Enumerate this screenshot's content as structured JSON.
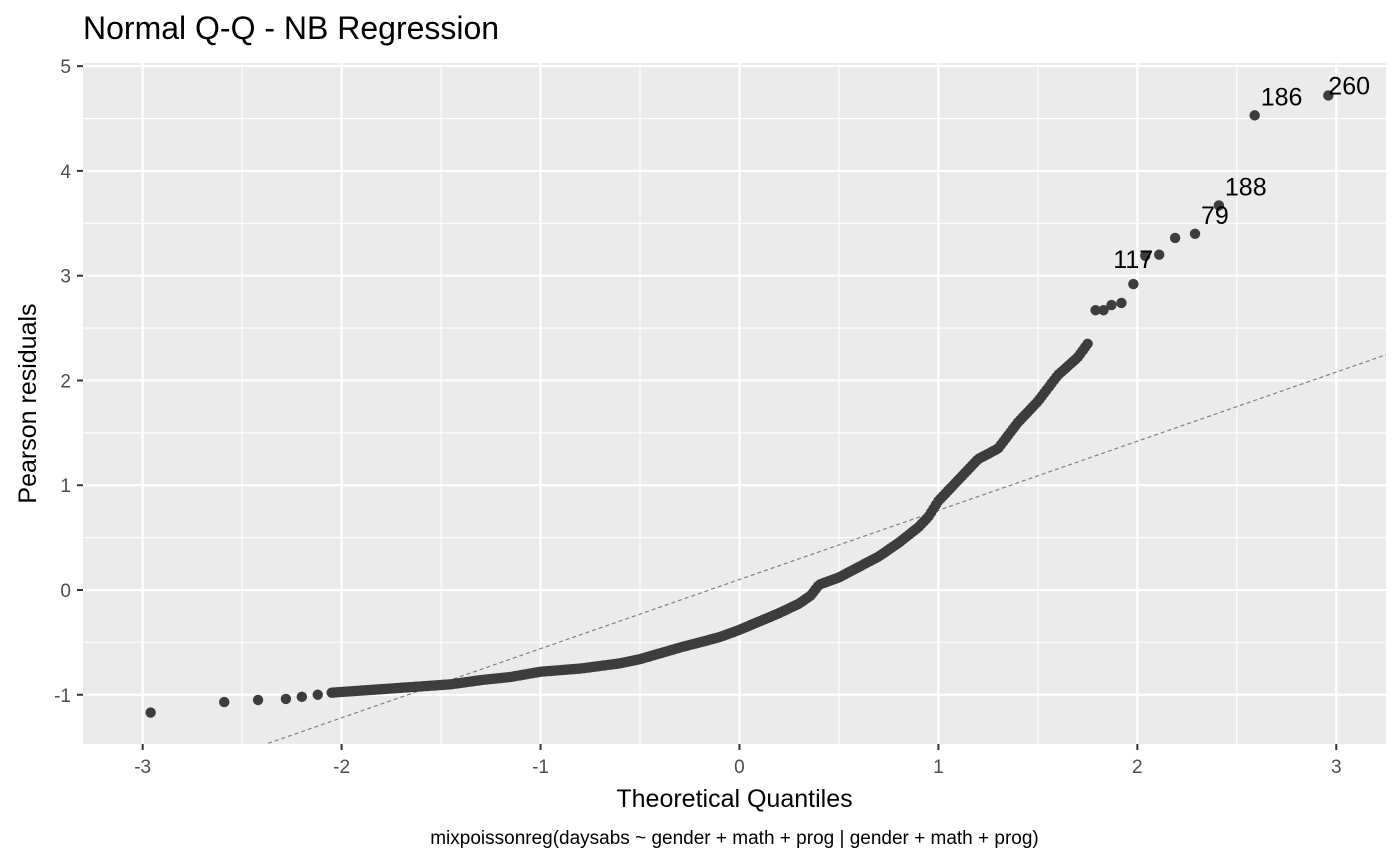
{
  "chart_data": {
    "type": "scatter",
    "title": "Normal Q-Q - NB Regression",
    "xlabel": "Theoretical Quantiles",
    "ylabel": "Pearson residuals",
    "caption": "mixpoissonreg(daysabs ~ gender + math + prog | gender + math + prog)",
    "xlim": [
      -3.3,
      3.25
    ],
    "ylim": [
      -1.47,
      5.03
    ],
    "xticks": [
      -3,
      -2,
      -1,
      0,
      1,
      2,
      3
    ],
    "xtick_labels": [
      "-3",
      "-2",
      "-1",
      "0",
      "1",
      "2",
      "3"
    ],
    "yticks": [
      -1,
      0,
      1,
      2,
      3,
      4,
      5
    ],
    "ytick_labels": [
      "-1",
      "0",
      "1",
      "2",
      "3",
      "4",
      "5"
    ],
    "grid": true,
    "point_color": "#3d3d3d",
    "panel_color": "#ebebeb",
    "reference_line": {
      "style": "dashed",
      "color": "#808080",
      "intercept": 0.1,
      "slope": 0.66
    },
    "anchors": [
      [
        -2.96,
        -1.17
      ],
      [
        -2.59,
        -1.07
      ],
      [
        -2.42,
        -1.05
      ],
      [
        -2.28,
        -1.04
      ],
      [
        -2.2,
        -1.02
      ],
      [
        -2.12,
        -1.0
      ],
      [
        -2.05,
        -0.98
      ],
      [
        -1.9,
        -0.96
      ],
      [
        -1.75,
        -0.94
      ],
      [
        -1.6,
        -0.92
      ],
      [
        -1.45,
        -0.9
      ],
      [
        -1.3,
        -0.86
      ],
      [
        -1.15,
        -0.83
      ],
      [
        -1.0,
        -0.78
      ],
      [
        -0.8,
        -0.75
      ],
      [
        -0.6,
        -0.7
      ],
      [
        -0.5,
        -0.66
      ],
      [
        -0.3,
        -0.55
      ],
      [
        -0.1,
        -0.45
      ],
      [
        0.0,
        -0.38
      ],
      [
        0.1,
        -0.3
      ],
      [
        0.2,
        -0.22
      ],
      [
        0.3,
        -0.13
      ],
      [
        0.36,
        -0.05
      ],
      [
        0.4,
        0.05
      ],
      [
        0.5,
        0.12
      ],
      [
        0.6,
        0.22
      ],
      [
        0.7,
        0.32
      ],
      [
        0.8,
        0.45
      ],
      [
        0.9,
        0.6
      ],
      [
        0.95,
        0.7
      ],
      [
        1.0,
        0.85
      ],
      [
        1.1,
        1.05
      ],
      [
        1.2,
        1.25
      ],
      [
        1.3,
        1.35
      ],
      [
        1.4,
        1.6
      ],
      [
        1.5,
        1.8
      ],
      [
        1.6,
        2.05
      ],
      [
        1.7,
        2.22
      ],
      [
        1.75,
        2.35
      ]
    ],
    "n_points": 314,
    "extreme_points": [
      [
        1.79,
        2.67
      ],
      [
        1.83,
        2.67
      ],
      [
        1.87,
        2.72
      ],
      [
        1.92,
        2.74
      ],
      [
        1.98,
        2.92
      ],
      [
        2.04,
        3.19
      ],
      [
        2.11,
        3.2
      ],
      [
        2.19,
        3.36
      ],
      [
        2.29,
        3.4
      ],
      [
        2.41,
        3.67
      ],
      [
        2.59,
        4.53
      ],
      [
        2.96,
        4.72
      ]
    ],
    "labeled_points": [
      {
        "label": "117",
        "x": 2.04,
        "y": 3.19
      },
      {
        "label": "79",
        "x": 2.29,
        "y": 3.4
      },
      {
        "label": "188",
        "x": 2.41,
        "y": 3.67
      },
      {
        "label": "186",
        "x": 2.59,
        "y": 4.53
      },
      {
        "label": "260",
        "x": 2.96,
        "y": 4.72
      }
    ]
  }
}
